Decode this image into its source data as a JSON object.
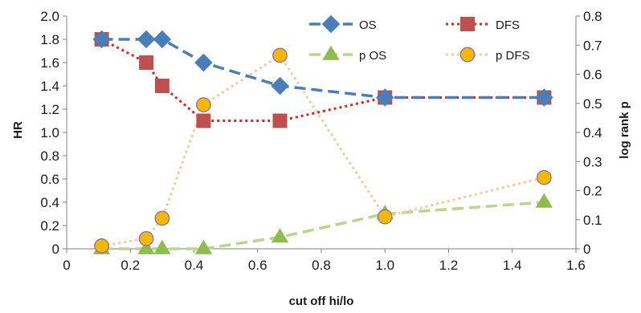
{
  "chart_data": {
    "type": "line",
    "xlabel": "cut off hi/lo",
    "ylabel_left": "HR",
    "ylabel_right": "log rank p",
    "xlim": [
      0,
      1.6
    ],
    "ylim_left": [
      0,
      2.0
    ],
    "ylim_right": [
      0,
      0.8
    ],
    "x_ticks": [
      "0",
      "0.2",
      "0.4",
      "0.6",
      "0.8",
      "1.0",
      "1.2",
      "1.4",
      "1.6"
    ],
    "y_left_ticks": [
      "0",
      "0.2",
      "0.4",
      "0.6",
      "0.8",
      "1.0",
      "1.2",
      "1.4",
      "1.6",
      "1.8",
      "2.0"
    ],
    "y_right_ticks": [
      "0",
      "0.1",
      "0.2",
      "0.3",
      "0.4",
      "0.5",
      "0.6",
      "0.7",
      "0.8"
    ],
    "grid": false,
    "legend_placement": "top-right",
    "series": [
      {
        "name": "OS",
        "axis": "left",
        "color": "#4a7ebb",
        "style": "dashed",
        "marker": "diamond",
        "x": [
          0.11,
          0.25,
          0.3,
          0.43,
          0.67,
          1.0,
          1.5
        ],
        "y": [
          1.8,
          1.8,
          1.8,
          1.6,
          1.4,
          1.3,
          1.3
        ]
      },
      {
        "name": "DFS",
        "axis": "left",
        "color": "#e8201f",
        "style": "dotted",
        "marker": "square",
        "marker_color": "#c0504d",
        "x": [
          0.11,
          0.25,
          0.3,
          0.43,
          0.67,
          1.0,
          1.5
        ],
        "y": [
          1.8,
          1.6,
          1.4,
          1.1,
          1.1,
          1.3,
          1.3
        ]
      },
      {
        "name": "p OS",
        "axis": "right",
        "color": "#b8d68c",
        "style": "dashed",
        "marker": "triangle",
        "marker_color": "#8fbc4f",
        "x": [
          0.11,
          0.25,
          0.3,
          0.43,
          0.67,
          1.0,
          1.5
        ],
        "y": [
          0.0,
          0.0,
          0.0,
          0.0,
          0.04,
          0.12,
          0.16
        ]
      },
      {
        "name": "p DFS",
        "axis": "right",
        "color": "#f8c8a0",
        "style": "dotted",
        "marker": "circle",
        "marker_color": "#f5b800",
        "marker_edge": "#8a6fb0",
        "x": [
          0.11,
          0.25,
          0.3,
          0.43,
          0.67,
          1.0,
          1.5
        ],
        "y": [
          0.01,
          0.035,
          0.105,
          0.495,
          0.665,
          0.11,
          0.245
        ]
      }
    ]
  }
}
